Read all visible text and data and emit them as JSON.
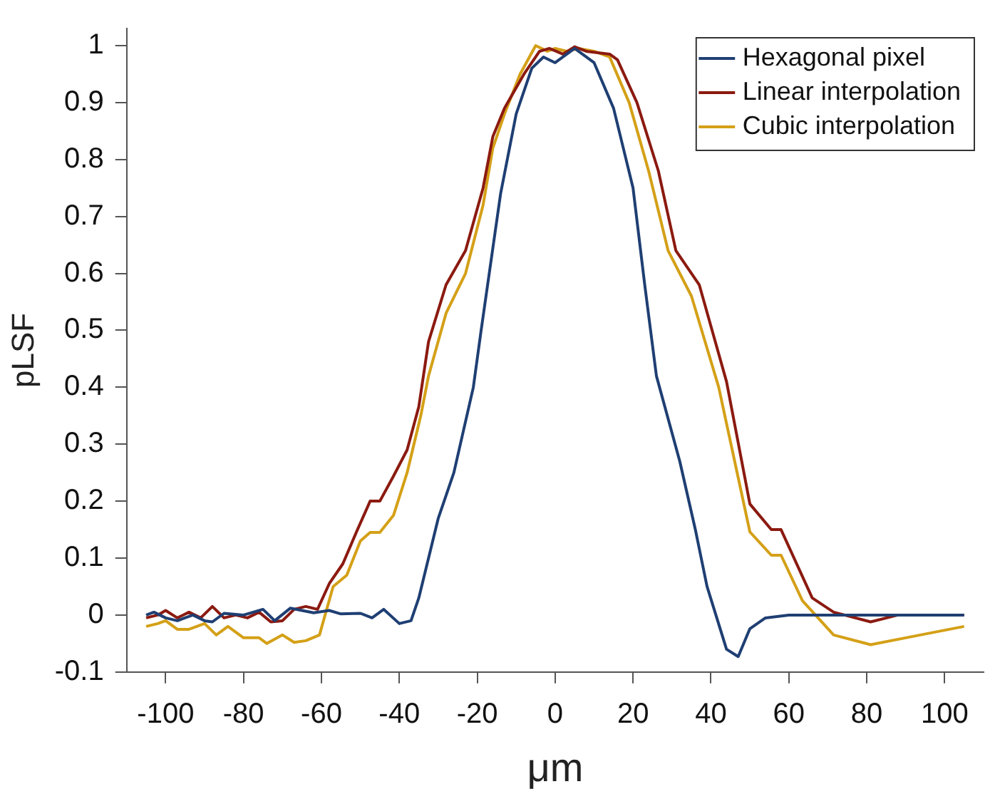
{
  "chart_data": {
    "type": "line",
    "xlabel": "μm",
    "ylabel": "pLSF",
    "xlim": [
      -110,
      110
    ],
    "ylim": [
      -0.1,
      1.03
    ],
    "xticks": [
      -100,
      -80,
      -60,
      -40,
      -20,
      0,
      20,
      40,
      60,
      80,
      100
    ],
    "yticks": [
      -0.1,
      0,
      0.1,
      0.2,
      0.3,
      0.4,
      0.5,
      0.6,
      0.7,
      0.8,
      0.9,
      1
    ],
    "grid": false,
    "legend": "top right",
    "marker": "none",
    "line_style": "solid",
    "series": [
      {
        "name": "Hexagonal pixel",
        "color": "#1f3f73",
        "x": [
          -105,
          -103,
          -100,
          -97,
          -93,
          -90,
          -88,
          -85,
          -80,
          -75,
          -72,
          -68,
          -65,
          -62,
          -58,
          -55,
          -50,
          -47,
          -44,
          -40,
          -37,
          -35,
          -30,
          -26,
          -21,
          -19,
          -14,
          -10,
          -6,
          -3,
          0,
          5,
          10,
          15,
          20,
          23,
          26,
          32,
          36,
          39,
          44,
          47,
          50,
          54,
          60,
          105
        ],
        "values": [
          0,
          0.005,
          -0.005,
          -0.01,
          0,
          -0.01,
          -0.012,
          0.003,
          0,
          0.01,
          -0.01,
          0.012,
          0.008,
          0.004,
          0.008,
          0.002,
          0.003,
          -0.005,
          0.01,
          -0.015,
          -0.01,
          0.03,
          0.17,
          0.25,
          0.4,
          0.5,
          0.74,
          0.88,
          0.96,
          0.98,
          0.97,
          0.995,
          0.97,
          0.89,
          0.75,
          0.58,
          0.42,
          0.27,
          0.15,
          0.05,
          -0.06,
          -0.073,
          -0.024,
          -0.005,
          0,
          0
        ]
      },
      {
        "name": "Linear interpolation",
        "color": "#8b1a10",
        "x": [
          -105,
          -102,
          -100,
          -97,
          -94,
          -91,
          -88,
          -85,
          -82,
          -79,
          -76,
          -73,
          -70,
          -67,
          -64,
          -61,
          -58,
          -54.5,
          -51,
          -47.5,
          -45,
          -41.5,
          -38,
          -35,
          -32.5,
          -28,
          -23,
          -18.5,
          -16,
          -13,
          -8,
          -4,
          -1.5,
          2,
          5,
          8,
          14,
          16,
          21,
          26.5,
          31,
          37,
          44,
          50,
          55.5,
          58,
          66,
          71.5,
          81,
          88,
          105
        ],
        "values": [
          -0.005,
          0,
          0.008,
          -0.005,
          0.005,
          -0.005,
          0.015,
          -0.005,
          0,
          -0.005,
          0.005,
          -0.012,
          -0.01,
          0.01,
          0.015,
          0.01,
          0.055,
          0.09,
          0.146,
          0.2,
          0.2,
          0.244,
          0.29,
          0.366,
          0.48,
          0.58,
          0.64,
          0.75,
          0.84,
          0.89,
          0.95,
          0.99,
          0.995,
          0.985,
          0.998,
          0.99,
          0.985,
          0.975,
          0.9,
          0.78,
          0.64,
          0.58,
          0.41,
          0.195,
          0.15,
          0.15,
          0.03,
          0.005,
          -0.012,
          0,
          0
        ]
      },
      {
        "name": "Cubic interpolation",
        "color": "#d4a017",
        "x": [
          -105,
          -102,
          -100,
          -97,
          -94,
          -90,
          -87,
          -84,
          -80,
          -76,
          -74,
          -70,
          -67,
          -64,
          -60.5,
          -57,
          -53.5,
          -50,
          -47.5,
          -45,
          -41.5,
          -38,
          -34.5,
          -32.5,
          -28,
          -23,
          -18.5,
          -16,
          -13,
          -9,
          -5,
          -2,
          0,
          3,
          6,
          10,
          14,
          19,
          24,
          29,
          35,
          42,
          50,
          55.5,
          58,
          63.5,
          71.5,
          81,
          90,
          105
        ],
        "values": [
          -0.02,
          -0.015,
          -0.01,
          -0.025,
          -0.025,
          -0.015,
          -0.035,
          -0.02,
          -0.04,
          -0.04,
          -0.05,
          -0.035,
          -0.048,
          -0.045,
          -0.035,
          0.05,
          0.07,
          0.13,
          0.145,
          0.145,
          0.175,
          0.25,
          0.35,
          0.42,
          0.53,
          0.6,
          0.72,
          0.82,
          0.88,
          0.95,
          1,
          0.99,
          0.995,
          0.99,
          0.995,
          0.99,
          0.98,
          0.9,
          0.78,
          0.64,
          0.56,
          0.4,
          0.146,
          0.105,
          0.105,
          0.025,
          -0.035,
          -0.052,
          -0.04,
          -0.02
        ]
      }
    ]
  }
}
